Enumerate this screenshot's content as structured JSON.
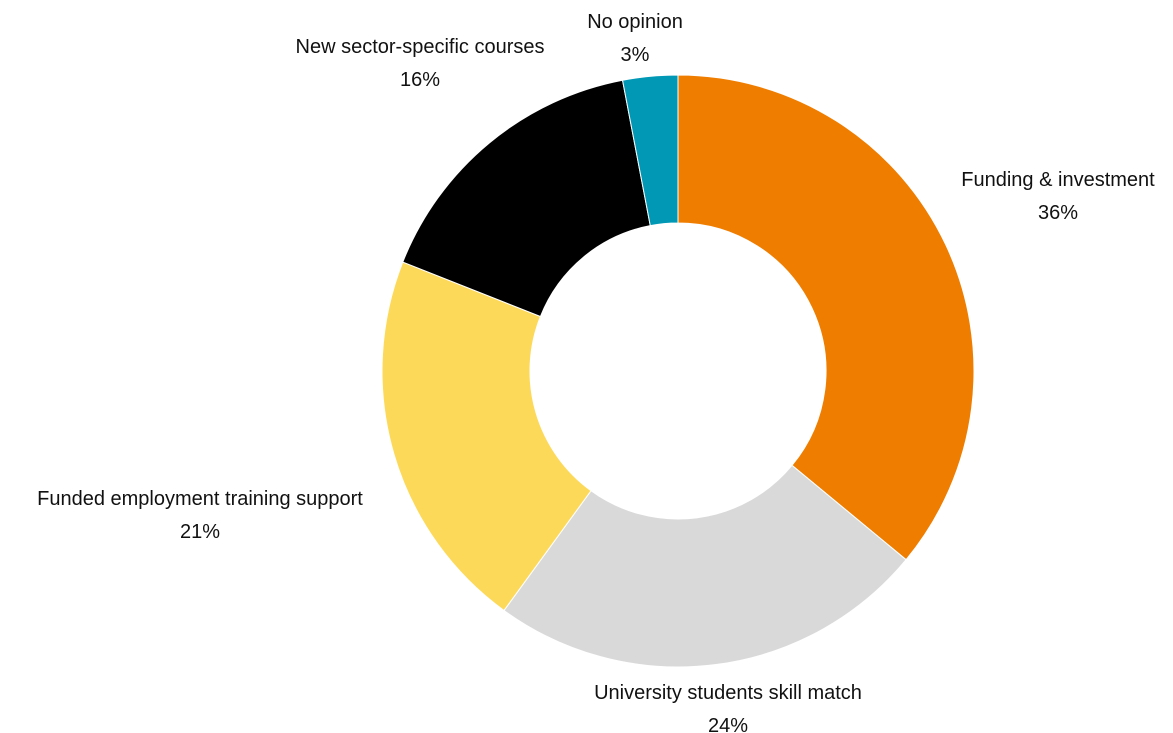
{
  "chart_data": {
    "type": "pie",
    "donut": true,
    "title": "",
    "start": "12 o'clock",
    "direction": "clockwise",
    "legend": "none",
    "slices": [
      {
        "label": "Funding & investment",
        "value": 36,
        "value_text": "36%",
        "color": "#ef7d00"
      },
      {
        "label": "University students skill match",
        "value": 24,
        "value_text": "24%",
        "color": "#d9d9d9"
      },
      {
        "label": "Funded employment training support",
        "value": 21,
        "value_text": "21%",
        "color": "#fdd95a"
      },
      {
        "label": "New sector-specific courses",
        "value": 16,
        "value_text": "16%",
        "color": "#000000"
      },
      {
        "label": "No opinion",
        "value": 3,
        "value_text": "3%",
        "color": "#0098b4"
      }
    ]
  }
}
